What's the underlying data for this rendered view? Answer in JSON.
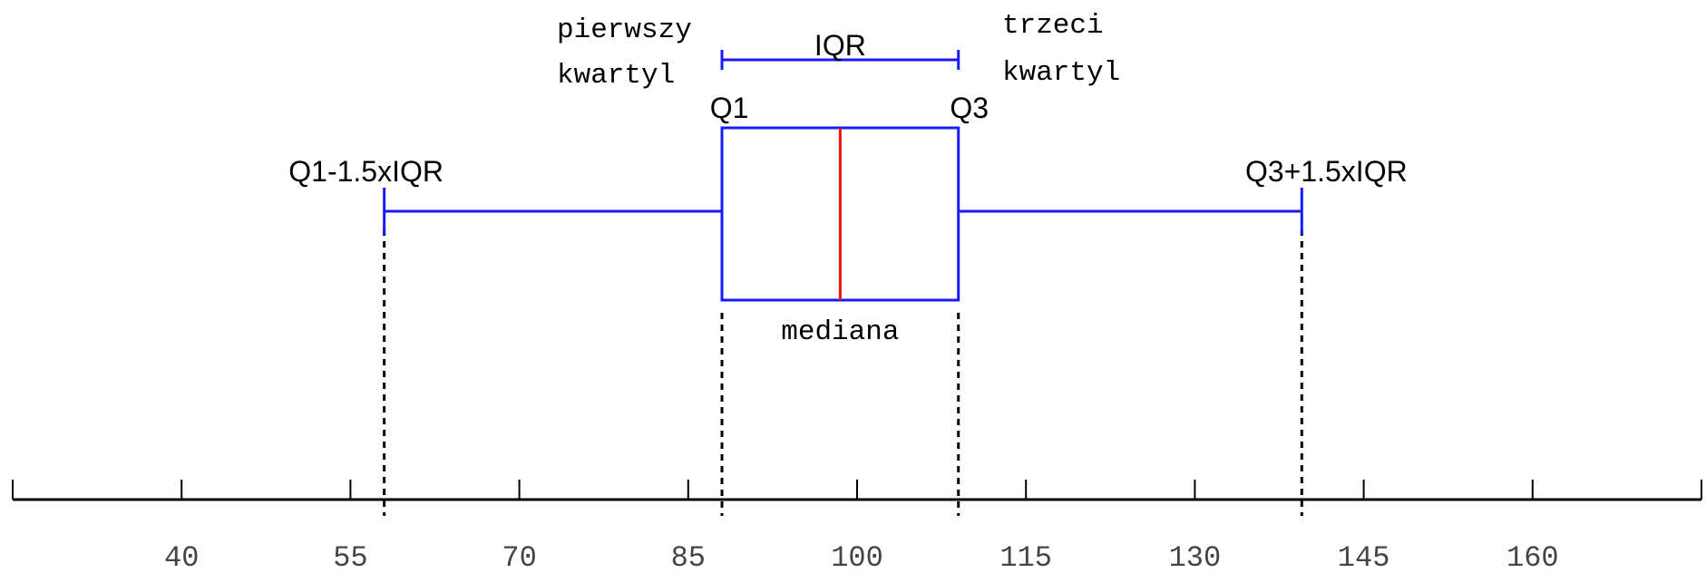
{
  "labels": {
    "q1_word": [
      "pierwszy",
      "kwartyl"
    ],
    "q3_word": [
      "trzeci",
      "kwartyl"
    ],
    "iqr": "IQR",
    "q1": "Q1",
    "q3": "Q3",
    "lower_fence": "Q1-1.5xIQR",
    "upper_fence": "Q3+1.5xIQR",
    "median": "mediana"
  },
  "colors": {
    "box": "#1a1aff",
    "median": "#ee1111",
    "axis": "#000000",
    "dashed": "#000000"
  },
  "chart_data": {
    "type": "boxplot",
    "axis_tick_labels": [
      "40",
      "55",
      "70",
      "85",
      "100",
      "115",
      "130",
      "145",
      "160"
    ],
    "xlim": [
      25,
      175
    ],
    "tick_step": 15,
    "box": {
      "lower_whisker": 58,
      "q1": 88,
      "median": 98.5,
      "q3": 109,
      "upper_whisker": 139.5
    }
  }
}
